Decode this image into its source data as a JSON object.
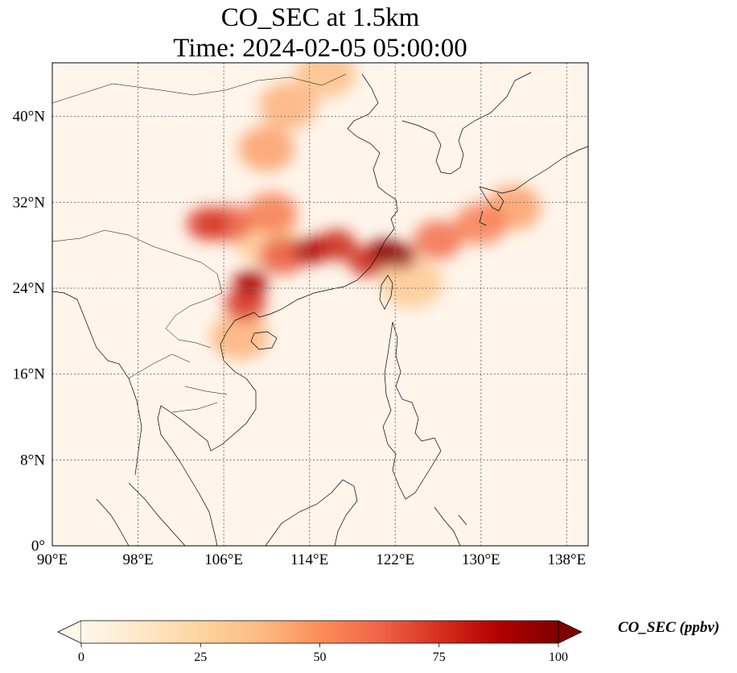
{
  "title": {
    "line1": "CO_SEC at 1.5km",
    "line2": "Time: 2024-02-05 05:00:00"
  },
  "map": {
    "projection": "PlateCarree",
    "lon_range": [
      90,
      140
    ],
    "lat_range": [
      0,
      45
    ],
    "gridlines": "dotted",
    "x_ticks": [
      {
        "value": 90,
        "label": "90°E"
      },
      {
        "value": 98,
        "label": "98°E"
      },
      {
        "value": 106,
        "label": "106°E"
      },
      {
        "value": 114,
        "label": "114°E"
      },
      {
        "value": 122,
        "label": "122°E"
      },
      {
        "value": 130,
        "label": "130°E"
      },
      {
        "value": 138,
        "label": "138°E"
      }
    ],
    "y_ticks": [
      {
        "value": 0,
        "label": "0°"
      },
      {
        "value": 8,
        "label": "8°N"
      },
      {
        "value": 16,
        "label": "16°N"
      },
      {
        "value": 24,
        "label": "24°N"
      },
      {
        "value": 32,
        "label": "32°N"
      },
      {
        "value": 40,
        "label": "40°N"
      }
    ],
    "background_color": "#fff5eb",
    "coastline_color": "#000000"
  },
  "colorbar": {
    "label": "CO_SEC (ppbv)",
    "min": 0,
    "max": 100,
    "extend": "both",
    "colormap": "OrRd",
    "ticks": [
      {
        "value": 0,
        "label": "0"
      },
      {
        "value": 25,
        "label": "25"
      },
      {
        "value": 50,
        "label": "50"
      },
      {
        "value": 75,
        "label": "75"
      },
      {
        "value": 100,
        "label": "100"
      }
    ],
    "stops": [
      "#fff7ec",
      "#fee8c8",
      "#fdd49e",
      "#fdbb84",
      "#fc8d59",
      "#ef6548",
      "#d7301f",
      "#b30000",
      "#7f0000"
    ]
  },
  "chart_data": {
    "type": "heatmap",
    "title": "CO_SEC at 1.5km\nTime: 2024-02-05 05:00:00",
    "xlabel": "",
    "ylabel": "",
    "xlim": [
      90,
      140
    ],
    "ylim": [
      0,
      45
    ],
    "grid": true,
    "value_range": [
      0,
      100
    ],
    "plumes": [
      {
        "lon": 121.0,
        "lat": 27.5,
        "value": 100
      },
      {
        "lon": 122.5,
        "lat": 27.0,
        "value": 95
      },
      {
        "lon": 119.5,
        "lat": 26.5,
        "value": 80
      },
      {
        "lon": 114.0,
        "lat": 27.5,
        "value": 90
      },
      {
        "lon": 116.5,
        "lat": 28.0,
        "value": 80
      },
      {
        "lon": 111.5,
        "lat": 27.0,
        "value": 65
      },
      {
        "lon": 108.5,
        "lat": 24.5,
        "value": 90
      },
      {
        "lon": 108.0,
        "lat": 22.5,
        "value": 75
      },
      {
        "lon": 104.5,
        "lat": 30.0,
        "value": 75
      },
      {
        "lon": 106.5,
        "lat": 30.0,
        "value": 65
      },
      {
        "lon": 110.5,
        "lat": 31.0,
        "value": 55
      },
      {
        "lon": 126.0,
        "lat": 28.5,
        "value": 60
      },
      {
        "lon": 130.0,
        "lat": 30.0,
        "value": 55
      },
      {
        "lon": 133.0,
        "lat": 31.5,
        "value": 45
      },
      {
        "lon": 110.0,
        "lat": 37.0,
        "value": 45
      },
      {
        "lon": 112.0,
        "lat": 41.0,
        "value": 40
      },
      {
        "lon": 115.5,
        "lat": 44.0,
        "value": 35
      },
      {
        "lon": 107.5,
        "lat": 19.5,
        "value": 40
      },
      {
        "lon": 123.5,
        "lat": 24.5,
        "value": 30
      },
      {
        "lon": 110.0,
        "lat": 28.5,
        "value": 30
      }
    ]
  }
}
